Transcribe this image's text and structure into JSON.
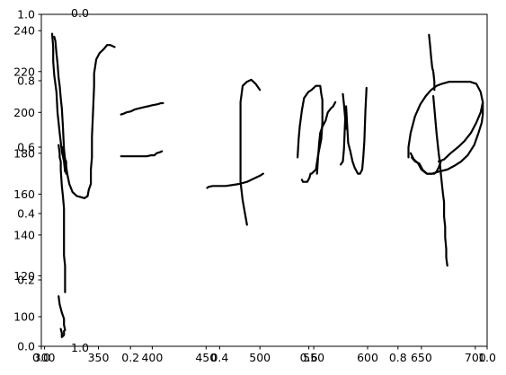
{
  "chart_data": {
    "type": "line",
    "title": "",
    "xlabel": "",
    "ylabel": "",
    "grid": false,
    "legend": "none",
    "colors": {
      "stroke": "#000000",
      "axes": "#000000",
      "background": "#ffffff"
    },
    "tick_label_layers": [
      {
        "id": "unit",
        "x_ticks": [
          "0.0",
          "0.2",
          "0.4",
          "0.6",
          "0.8",
          "1.0"
        ],
        "y_ticks": [
          "0.0",
          "0.2",
          "0.4",
          "0.6",
          "0.8",
          "1.0"
        ],
        "xlim": [
          0,
          1
        ],
        "ylim": [
          0,
          1
        ]
      },
      {
        "id": "ink",
        "x_ticks": [
          "300",
          "350",
          "400",
          "450",
          "500",
          "550",
          "600",
          "650",
          "700"
        ],
        "y_ticks": [
          "100",
          "120",
          "140",
          "160",
          "180",
          "200",
          "220",
          "240"
        ],
        "xlim": [
          297,
          711
        ],
        "ylim": [
          85.5,
          248
        ]
      }
    ],
    "series": [
      {
        "x": [
          307,
          308,
          308,
          309,
          311,
          312,
          314,
          316,
          318,
          319
        ],
        "y": [
          238.5,
          232,
          225,
          218,
          210,
          200,
          190,
          181,
          176,
          171
        ]
      },
      {
        "x": [
          309,
          310,
          311,
          312,
          313,
          314,
          315,
          316,
          317,
          318,
          319,
          320,
          320
        ],
        "y": [
          237,
          235,
          229,
          224,
          217,
          213,
          207,
          202,
          193,
          182,
          177,
          176,
          170
        ]
      },
      {
        "x": [
          313,
          314,
          314,
          315,
          315,
          316,
          317,
          318,
          318,
          318,
          318,
          319,
          319,
          319
        ],
        "y": [
          184,
          180,
          178,
          176,
          172,
          164,
          159,
          153,
          143,
          137,
          130,
          125,
          118,
          112
        ]
      },
      {
        "x": [
          313,
          314,
          316,
          318,
          318,
          319,
          318,
          318,
          316,
          316,
          315
        ],
        "y": [
          110,
          106,
          102,
          99,
          96,
          93.5,
          93,
          91,
          90,
          92,
          94
        ]
      },
      {
        "x": [
          317,
          319,
          321,
          323,
          326,
          330,
          334,
          337,
          340,
          341,
          343,
          343,
          344,
          344,
          345,
          346,
          346,
          348,
          351,
          355,
          358,
          361,
          365
        ],
        "y": [
          183,
          177,
          170,
          165,
          161,
          159,
          158.5,
          158,
          159,
          162,
          165,
          172,
          178,
          188,
          200,
          213,
          219,
          226,
          229,
          231,
          233,
          233,
          232
        ]
      },
      {
        "x": [
          371,
          374,
          376,
          380,
          384,
          388,
          392,
          396,
          400,
          405,
          408,
          410
        ],
        "y": [
          199,
          199.5,
          200,
          200.5,
          201.5,
          202,
          202.5,
          203,
          203.5,
          204,
          204.5,
          204.5
        ]
      },
      {
        "x": [
          371,
          377,
          383,
          389,
          395,
          399,
          402,
          404,
          407,
          409
        ],
        "y": [
          178.5,
          178.5,
          178.5,
          178.5,
          178.5,
          179,
          179,
          180,
          180.5,
          181
        ]
      },
      {
        "x": [
          451,
          452,
          456,
          462,
          468,
          475,
          481,
          488,
          494,
          500,
          503
        ],
        "y": [
          163,
          163.5,
          164,
          164,
          164,
          164.5,
          165,
          166,
          167.5,
          169,
          170
        ]
      },
      {
        "x": [
          488,
          486,
          484,
          482,
          482,
          482,
          482,
          484,
          488,
          492,
          496,
          500
        ],
        "y": [
          145,
          151,
          157,
          166,
          180,
          195,
          205,
          213,
          215,
          216,
          214,
          211
        ]
      },
      {
        "x": [
          539,
          540,
          542,
          544,
          545,
          546,
          547,
          548,
          550,
          552,
          554,
          557,
          558,
          558,
          558,
          557,
          556,
          552,
          548,
          545,
          541,
          539,
          537,
          536,
          535
        ],
        "y": [
          167,
          166,
          166,
          166,
          167,
          168,
          170,
          170,
          171,
          172,
          179,
          187,
          195,
          201,
          206,
          209,
          213,
          213,
          211,
          210,
          207,
          201,
          193,
          187,
          178
        ]
      },
      {
        "x": [
          553,
          554,
          555,
          556,
          558,
          561,
          563,
          566,
          568,
          570
        ],
        "y": [
          170,
          178,
          185,
          190,
          193,
          196,
          200,
          202,
          203,
          205
        ]
      },
      {
        "x": [
          575,
          577,
          578,
          579,
          580,
          582,
          584,
          586,
          588,
          591,
          593,
          595,
          596,
          597,
          598,
          599
        ],
        "y": [
          174.5,
          176,
          182,
          195,
          203,
          185,
          181,
          176,
          173,
          170,
          170,
          172,
          178,
          186,
          201,
          212
        ]
      },
      {
        "x": [
          577,
          578,
          579,
          580
        ],
        "y": [
          209,
          204,
          198,
          192
        ]
      },
      {
        "x": [
          657,
          658,
          659,
          660,
          661,
          662,
          662
        ],
        "y": [
          238,
          233,
          227,
          222,
          220,
          215,
          211
        ]
      },
      {
        "x": [
          661,
          662,
          663,
          664,
          665,
          666,
          667,
          668,
          669,
          670,
          671,
          671,
          672,
          672,
          673,
          673,
          674
        ],
        "y": [
          208,
          202,
          196,
          190,
          185,
          180,
          176,
          170,
          165,
          160,
          156,
          149,
          144,
          139,
          133,
          129,
          125
        ]
      },
      {
        "x": [
          640,
          643,
          647,
          650,
          655,
          660,
          666,
          674,
          681,
          687,
          693,
          699,
          703,
          706,
          707,
          707,
          705,
          701,
          695,
          690,
          683,
          676,
          669,
          664,
          659,
          654,
          649,
          644,
          640,
          638,
          638
        ],
        "y": [
          180,
          177,
          175,
          172,
          170,
          170,
          171,
          172,
          174,
          176,
          179,
          184,
          190,
          195,
          199,
          205,
          210,
          214,
          215,
          215,
          215,
          215,
          214,
          213,
          211,
          208,
          204,
          198,
          190,
          183,
          178
        ]
      },
      {
        "x": [
          641,
          644,
          648,
          651,
          655,
          659,
          662,
          664,
          666,
          668
        ],
        "y": [
          178,
          176,
          175,
          172,
          170,
          170,
          170,
          171,
          173,
          176
        ]
      },
      {
        "x": [
          666,
          671,
          677,
          684,
          690,
          696,
          701,
          705,
          707
        ],
        "y": [
          176,
          177,
          180,
          183,
          186,
          190,
          195,
          200,
          205
        ]
      }
    ]
  }
}
